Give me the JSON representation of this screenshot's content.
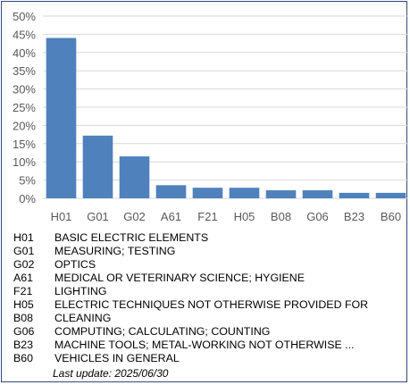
{
  "chart_data": {
    "type": "bar",
    "categories": [
      "H01",
      "G01",
      "G02",
      "A61",
      "F21",
      "H05",
      "B08",
      "G06",
      "B23",
      "B60"
    ],
    "values": [
      44.0,
      17.2,
      11.5,
      3.6,
      2.9,
      2.9,
      2.2,
      2.2,
      1.5,
      1.5
    ],
    "ylim": [
      0,
      50
    ],
    "yticks": [
      "0%",
      "5%",
      "10%",
      "15%",
      "20%",
      "25%",
      "30%",
      "35%",
      "40%",
      "45%",
      "50%"
    ],
    "grid": true,
    "bar_color": "#4f81bd",
    "grid_color": "#d9d9d9"
  },
  "legend": [
    {
      "code": "H01",
      "desc": "BASIC ELECTRIC ELEMENTS"
    },
    {
      "code": "G01",
      "desc": "MEASURING; TESTING"
    },
    {
      "code": "G02",
      "desc": "OPTICS"
    },
    {
      "code": "A61",
      "desc": "MEDICAL OR VETERINARY SCIENCE; HYGIENE"
    },
    {
      "code": "F21",
      "desc": "LIGHTING"
    },
    {
      "code": "H05",
      "desc": "ELECTRIC TECHNIQUES NOT OTHERWISE PROVIDED FOR"
    },
    {
      "code": "B08",
      "desc": "CLEANING"
    },
    {
      "code": "G06",
      "desc": "COMPUTING; CALCULATING; COUNTING"
    },
    {
      "code": "B23",
      "desc": "MACHINE TOOLS; METAL-WORKING NOT OTHERWISE ..."
    },
    {
      "code": "B60",
      "desc": "VEHICLES IN GENERAL"
    }
  ],
  "footer": {
    "last_update": "Last update:  2025/06/30"
  }
}
